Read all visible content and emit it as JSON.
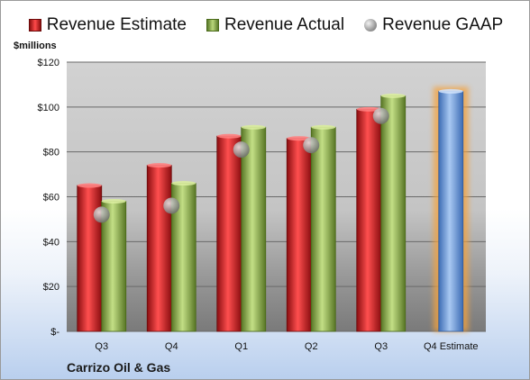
{
  "legend": {
    "estimate": "Revenue Estimate",
    "actual": "Revenue Actual",
    "gaap": "Revenue GAAP"
  },
  "unit_label": "$millions",
  "company": "Carrizo Oil & Gas",
  "colors": {
    "estimate": "#c8252a",
    "actual": "#8bb04a",
    "gaap": "#a0a0a0",
    "forecast": "#6e9ad8",
    "forecast_glow": "#f4a23c"
  },
  "chart_data": {
    "type": "bar",
    "title": "",
    "categories": [
      "Q3",
      "Q4",
      "Q1",
      "Q2",
      "Q3",
      "Q4 Estimate"
    ],
    "series": [
      {
        "name": "Revenue Estimate",
        "values": [
          65,
          74,
          87,
          86,
          99,
          107
        ]
      },
      {
        "name": "Revenue Actual",
        "values": [
          58,
          66,
          91,
          91,
          105,
          null
        ]
      },
      {
        "name": "Revenue GAAP",
        "values": [
          52,
          56,
          81,
          83,
          96,
          null
        ]
      }
    ],
    "ylim": [
      0,
      120
    ],
    "yticks": [
      0,
      20,
      40,
      60,
      80,
      100,
      120
    ],
    "ytick_labels": [
      "$-",
      "$20",
      "$40",
      "$60",
      "$80",
      "$100",
      "$120"
    ],
    "grid": true,
    "legend_position": "top"
  }
}
